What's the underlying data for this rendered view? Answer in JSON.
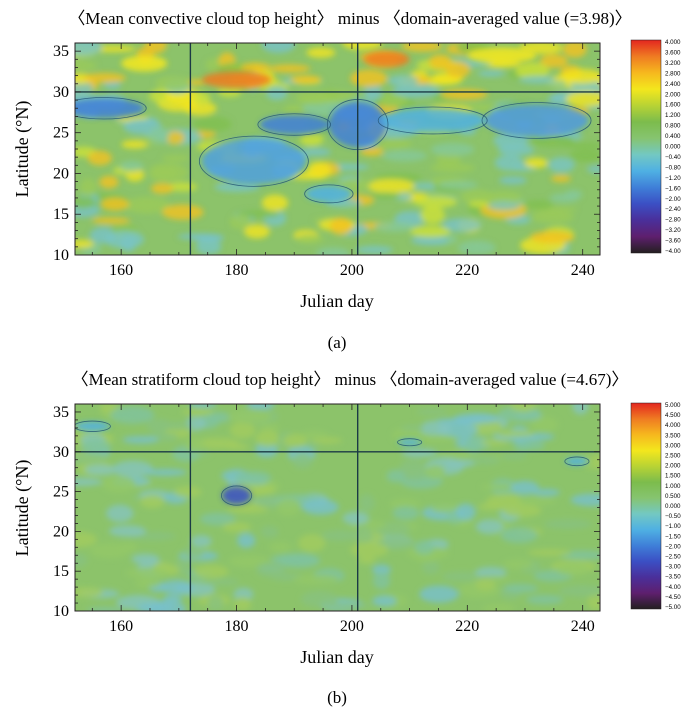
{
  "chart_data": [
    {
      "type": "heatmap",
      "title": "〈Mean convective cloud top height〉 minus 〈domain-averaged value (=3.98)〉",
      "xlabel": "Julian day",
      "ylabel": "Latitude (°N)",
      "xlim": [
        152,
        243
      ],
      "ylim": [
        10,
        36
      ],
      "x_ticks": [
        "160",
        "180",
        "200",
        "220",
        "240"
      ],
      "y_ticks": [
        "10",
        "15",
        "20",
        "25",
        "30",
        "35"
      ],
      "reference_lines": {
        "x": [
          172,
          201
        ],
        "y": [
          30
        ]
      },
      "colorbar_ticks": [
        "4.000",
        "3.600",
        "3.200",
        "2.800",
        "2.400",
        "2.000",
        "1.600",
        "1.200",
        "0.800",
        "0.400",
        "0.000",
        "−0.40",
        "−0.80",
        "−1.20",
        "−1.60",
        "−2.00",
        "−2.40",
        "−2.80",
        "−3.20",
        "−3.60",
        "−4.00"
      ],
      "colorbar_range": [
        -4,
        4
      ],
      "panel_label": "(a)"
    },
    {
      "type": "heatmap",
      "title": "〈Mean stratiform cloud top height〉 minus 〈domain-averaged value (=4.67)〉",
      "xlabel": "Julian day",
      "ylabel": "Latitude (°N)",
      "xlim": [
        152,
        243
      ],
      "ylim": [
        10,
        36
      ],
      "x_ticks": [
        "160",
        "180",
        "200",
        "220",
        "240"
      ],
      "y_ticks": [
        "10",
        "15",
        "20",
        "25",
        "30",
        "35"
      ],
      "reference_lines": {
        "x": [
          172,
          201
        ],
        "y": [
          30
        ]
      },
      "colorbar_ticks": [
        "5.000",
        "4.500",
        "4.000",
        "3.500",
        "3.000",
        "2.500",
        "2.000",
        "1.500",
        "1.000",
        "0.500",
        "0.000",
        "−0.50",
        "−1.00",
        "−1.50",
        "−2.00",
        "−2.50",
        "−3.00",
        "−3.50",
        "−4.00",
        "−4.50",
        "−5.00"
      ],
      "colorbar_range": [
        -5,
        5
      ],
      "panel_label": "(b)"
    }
  ],
  "colors": {
    "colormap": [
      "#231f20",
      "#5e1f6e",
      "#4a2f9a",
      "#3b4fc4",
      "#3f7fd8",
      "#4fb0e3",
      "#73c8c2",
      "#86c470",
      "#7cbc4c",
      "#b8d334",
      "#f3e71d",
      "#f6b81e",
      "#ef7b22",
      "#e3261f"
    ],
    "field_base": "#8cc36a",
    "contour": "#1f5070",
    "reference_line": "#1b3a45"
  }
}
